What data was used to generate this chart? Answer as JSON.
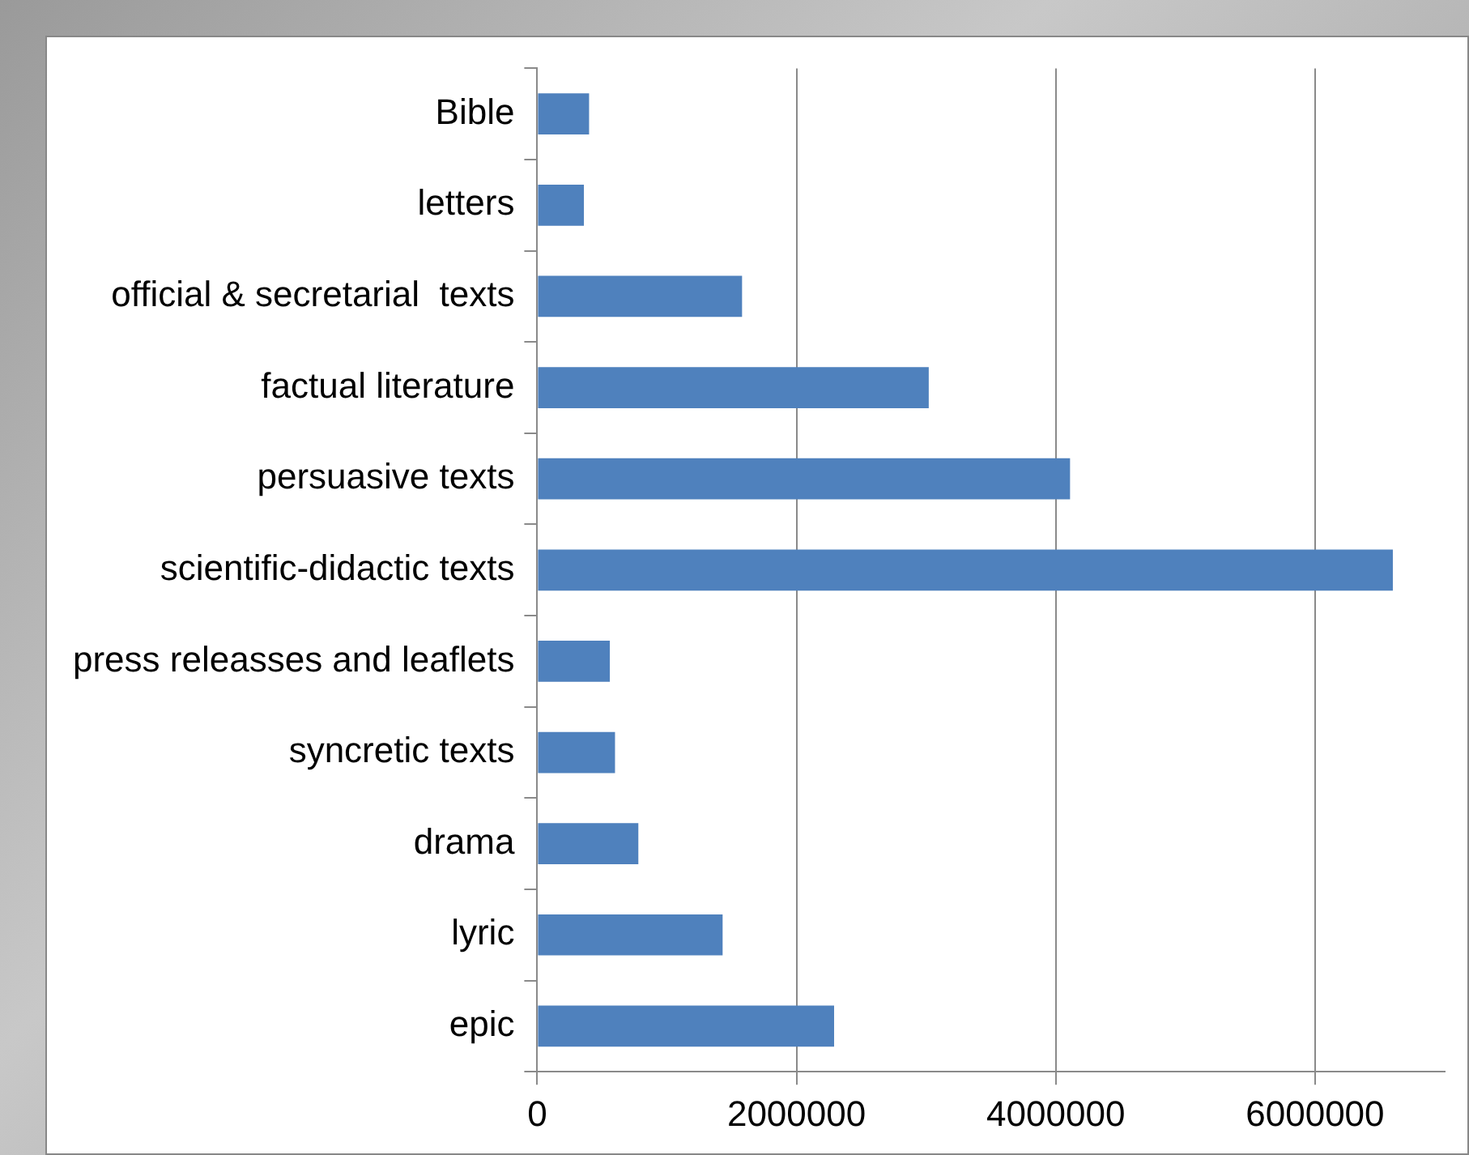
{
  "chart_data": {
    "type": "bar",
    "orientation": "horizontal",
    "categories": [
      "Bible",
      "letters",
      "official & secretarial  texts",
      "factual literature",
      "persuasive texts",
      "scientific-didactic texts",
      "press releasses and leaflets",
      "syncretic texts",
      "drama",
      "lyric",
      "epic"
    ],
    "values": [
      400000,
      360000,
      1580000,
      3020000,
      4110000,
      6600000,
      560000,
      600000,
      780000,
      1430000,
      2290000
    ],
    "color": "#4f81bd",
    "xlim": [
      0,
      7000000
    ],
    "xticks": [
      0,
      2000000,
      4000000,
      6000000
    ],
    "grid": "x",
    "legend": false
  }
}
